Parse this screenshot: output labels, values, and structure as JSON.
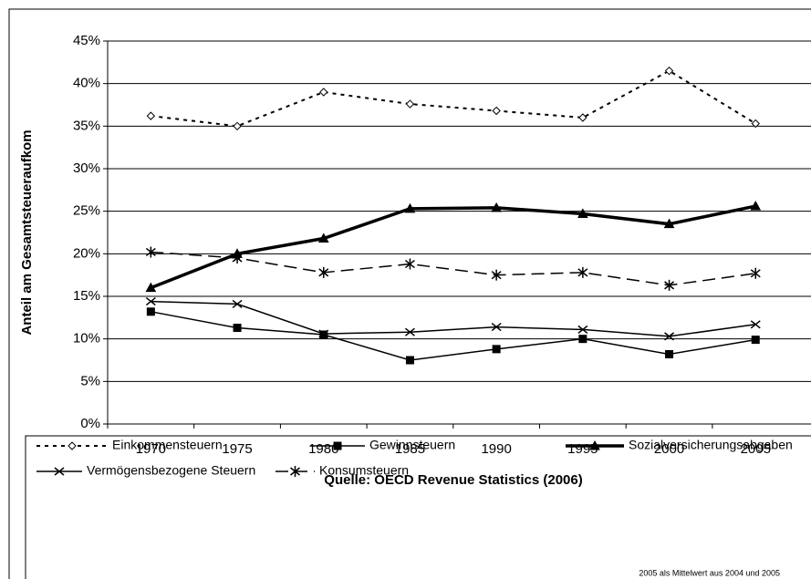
{
  "chart_data": {
    "type": "line",
    "categories": [
      "1970",
      "1975",
      "1980",
      "1985",
      "1990",
      "1995",
      "2000",
      "2005"
    ],
    "series": [
      {
        "name": "Einkommensteuern",
        "color": "#000000",
        "dash": "4,5",
        "width": 2,
        "marker": "diamond",
        "values": [
          36.2,
          35.0,
          39.0,
          37.6,
          36.8,
          36.0,
          41.5,
          35.3
        ]
      },
      {
        "name": "Gewinnsteuern",
        "color": "#000000",
        "dash": "",
        "width": 1.5,
        "marker": "square",
        "values": [
          13.2,
          11.3,
          10.5,
          7.5,
          8.8,
          10.0,
          8.2,
          9.9
        ]
      },
      {
        "name": "Sozialversicherungsabgaben",
        "color": "#000000",
        "dash": "",
        "width": 3.5,
        "marker": "triangle",
        "values": [
          16.0,
          20.0,
          21.8,
          25.3,
          25.4,
          24.7,
          23.5,
          25.6
        ]
      },
      {
        "name": "Vermögensbezogene Steuern",
        "color": "#000000",
        "dash": "",
        "width": 1.5,
        "marker": "x",
        "values": [
          14.4,
          14.1,
          10.6,
          10.8,
          11.4,
          11.1,
          10.3,
          11.7
        ]
      },
      {
        "name": "Konsumsteuern",
        "color": "#000000",
        "dash": "14,7",
        "width": 1.5,
        "marker": "star",
        "values": [
          20.2,
          19.5,
          17.8,
          18.8,
          17.5,
          17.8,
          16.3,
          17.7
        ]
      }
    ],
    "ylim": [
      0,
      45
    ],
    "yticks": [
      {
        "value": 0,
        "label": "0%"
      },
      {
        "value": 5,
        "label": "5%"
      },
      {
        "value": 10,
        "label": "10%"
      },
      {
        "value": 15,
        "label": "15%"
      },
      {
        "value": 20,
        "label": "20%"
      },
      {
        "value": 25,
        "label": "25%"
      },
      {
        "value": 30,
        "label": "30%"
      },
      {
        "value": 35,
        "label": "35%"
      },
      {
        "value": 40,
        "label": "40%"
      },
      {
        "value": 45,
        "label": "45%"
      }
    ],
    "grid": true,
    "y_label": "Anteil am Gesamtsteueraufkom",
    "x_label": "Quelle: OECD Revenue Statistics (2006)",
    "note": "2005 als Mittelwert aus 2004 und 2005"
  }
}
